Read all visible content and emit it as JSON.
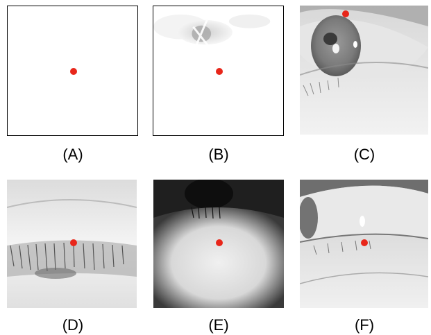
{
  "panels": [
    {
      "label": "(A)",
      "kind": "blank"
    },
    {
      "label": "(B)",
      "kind": "faint-eye"
    },
    {
      "label": "(C)",
      "kind": "open-eye"
    },
    {
      "label": "(D)",
      "kind": "lid-closed"
    },
    {
      "label": "(E)",
      "kind": "dark-lid"
    },
    {
      "label": "(F)",
      "kind": "side-eye"
    }
  ],
  "colors": {
    "gaze_dot": "#e8261a",
    "border": "#000000"
  }
}
